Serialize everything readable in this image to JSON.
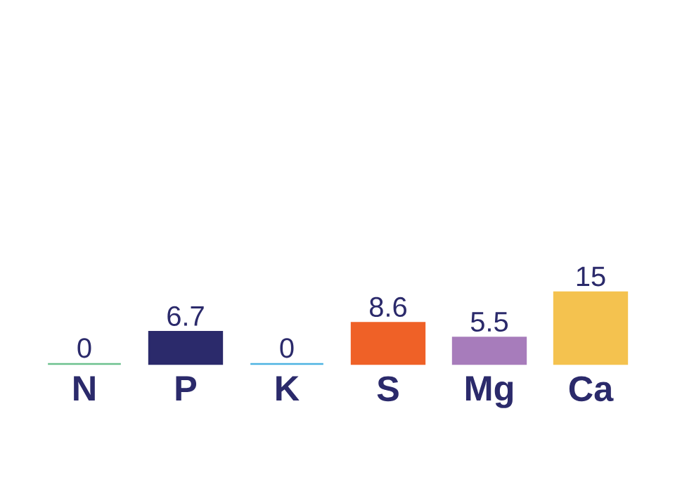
{
  "chart_data": {
    "type": "bar",
    "categories": [
      "N",
      "P",
      "K",
      "S",
      "Mg",
      "Ca"
    ],
    "values": [
      0,
      6.7,
      0,
      8.6,
      5.5,
      15
    ],
    "colors": [
      "#6cc18e",
      "#2b2a6b",
      "#4db3e2",
      "#ef6127",
      "#a77cbb",
      "#f4c24f"
    ],
    "data_labels": true
  }
}
